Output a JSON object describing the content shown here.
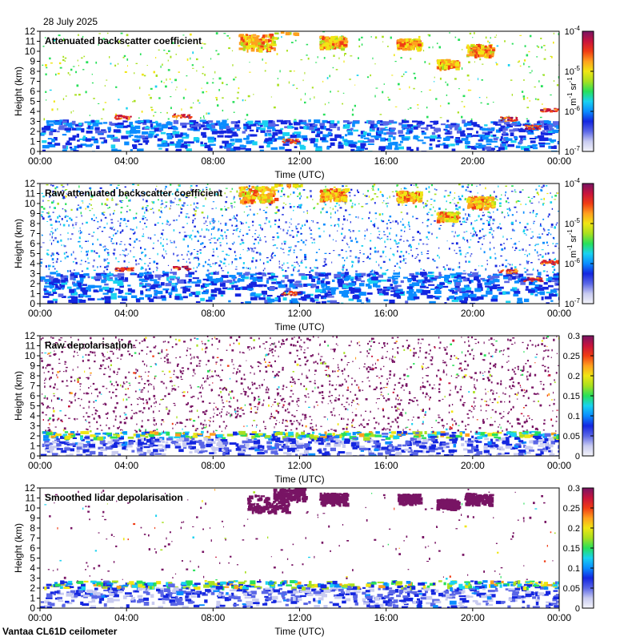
{
  "date": "28 July 2025",
  "instrument": "Vantaa CL61D ceilometer",
  "colors": {
    "plot_background": "#ffffff",
    "axis": "#000000",
    "colormap": [
      "#f4f4fa",
      "#c8cbf0",
      "#5a66e6",
      "#1426e0",
      "#0a8cff",
      "#19d2f0",
      "#28e05a",
      "#a8e020",
      "#f0e614",
      "#ffa01e",
      "#f03c14",
      "#c8143c",
      "#781464"
    ]
  },
  "chart_data": [
    {
      "type": "heatmap",
      "title": "Attenuated backscatter coefficient",
      "xlabel": "Time (UTC)",
      "ylabel": "Height (km)",
      "xticks": [
        "00:00",
        "04:00",
        "08:00",
        "12:00",
        "16:00",
        "20:00",
        "00:00"
      ],
      "yticks": [
        "0",
        "1",
        "2",
        "3",
        "4",
        "5",
        "6",
        "7",
        "8",
        "9",
        "10",
        "11",
        "12"
      ],
      "xlim": [
        0,
        24
      ],
      "ylim": [
        0,
        12
      ],
      "colorbar": {
        "scale": "log",
        "range": [
          1e-07,
          0.0001
        ],
        "ticks": [
          {
            "base": "10",
            "exp": "-7"
          },
          {
            "base": "10",
            "exp": "-6"
          },
          {
            "base": "10",
            "exp": "-5"
          },
          {
            "base": "10",
            "exp": "-4"
          }
        ],
        "unit": {
          "m": "m",
          "m_exp": "-1",
          "sr": "sr",
          "sr_exp": "-1"
        }
      },
      "features": {
        "boundary_layer_top_km": 3.2,
        "noise_density": 0.25,
        "cirrus": [
          [
            10.0,
            11.0,
            0.7
          ],
          [
            11.5,
            12.5,
            0.6
          ],
          [
            13.5,
            11.0,
            0.5
          ],
          [
            17.0,
            10.8,
            0.45
          ],
          [
            18.8,
            8.8,
            0.4
          ],
          [
            20.3,
            10.2,
            0.5
          ]
        ],
        "low_cloud": [
          [
            3.8,
            3.5
          ],
          [
            6.5,
            3.6
          ],
          [
            11.5,
            1.1
          ],
          [
            21.6,
            3.3
          ],
          [
            22.7,
            2.5
          ],
          [
            23.5,
            4.2
          ]
        ]
      }
    },
    {
      "type": "heatmap",
      "title": "Raw attenuated backscatter coefficient",
      "xlabel": "Time (UTC)",
      "ylabel": "Height (km)",
      "xticks": [
        "00:00",
        "04:00",
        "08:00",
        "12:00",
        "16:00",
        "20:00",
        "00:00"
      ],
      "yticks": [
        "0",
        "1",
        "2",
        "3",
        "4",
        "5",
        "6",
        "7",
        "8",
        "9",
        "10",
        "11",
        "12"
      ],
      "xlim": [
        0,
        24
      ],
      "ylim": [
        0,
        12
      ],
      "colorbar": {
        "scale": "log",
        "range": [
          1e-07,
          0.0001
        ],
        "ticks": [
          {
            "base": "10",
            "exp": "-7"
          },
          {
            "base": "10",
            "exp": "-6"
          },
          {
            "base": "10",
            "exp": "-5"
          },
          {
            "base": "10",
            "exp": "-4"
          }
        ],
        "unit": {
          "m": "m",
          "m_exp": "-1",
          "sr": "sr",
          "sr_exp": "-1"
        }
      },
      "features": {
        "boundary_layer_top_km": 3.2,
        "noise_density": 1.0,
        "cirrus": [
          [
            10.0,
            11.0,
            0.7
          ],
          [
            11.5,
            12.5,
            0.6
          ],
          [
            13.5,
            11.0,
            0.5
          ],
          [
            17.0,
            10.8,
            0.45
          ],
          [
            18.8,
            8.8,
            0.4
          ],
          [
            20.3,
            10.2,
            0.5
          ]
        ],
        "low_cloud": [
          [
            3.8,
            3.5
          ],
          [
            6.5,
            3.6
          ],
          [
            11.5,
            1.1
          ],
          [
            21.6,
            3.3
          ],
          [
            22.7,
            2.5
          ],
          [
            23.5,
            4.2
          ]
        ]
      }
    },
    {
      "type": "heatmap",
      "title": "Raw depolarisation",
      "xlabel": "Time (UTC)",
      "ylabel": "Height (km)",
      "xticks": [
        "00:00",
        "04:00",
        "08:00",
        "12:00",
        "16:00",
        "20:00",
        "00:00"
      ],
      "yticks": [
        "0",
        "1",
        "2",
        "3",
        "4",
        "5",
        "6",
        "7",
        "8",
        "9",
        "10",
        "11",
        "12"
      ],
      "xlim": [
        0,
        24
      ],
      "ylim": [
        0,
        12
      ],
      "colorbar": {
        "scale": "linear",
        "range": [
          0,
          0.3
        ],
        "ticks": [
          "0",
          "0.05",
          "0.1",
          "0.15",
          "0.2",
          "0.25",
          "0.3"
        ]
      },
      "features": {
        "boundary_layer_top_km": 2.5,
        "noise_density": 1.0,
        "cirrus": [],
        "low_cloud": []
      }
    },
    {
      "type": "heatmap",
      "title": "Smoothed lidar depolarisation",
      "xlabel": "Time (UTC)",
      "ylabel": "Height (km)",
      "xticks": [
        "00:00",
        "04:00",
        "08:00",
        "12:00",
        "16:00",
        "20:00",
        "00:00"
      ],
      "yticks": [
        "0",
        "1",
        "2",
        "3",
        "4",
        "5",
        "6",
        "7",
        "8",
        "9",
        "10",
        "11",
        "12"
      ],
      "xlim": [
        0,
        24
      ],
      "ylim": [
        0,
        12
      ],
      "colorbar": {
        "scale": "linear",
        "range": [
          0,
          0.3
        ],
        "ticks": [
          "0",
          "0.05",
          "0.1",
          "0.15",
          "0.2",
          "0.25",
          "0.3"
        ]
      },
      "features": {
        "boundary_layer_top_km": 2.8,
        "noise_density": 0.12,
        "cirrus": [
          [
            10.5,
            10.5,
            0.8
          ],
          [
            11.5,
            11.5,
            0.6
          ],
          [
            13.5,
            11.0,
            0.5
          ],
          [
            17.0,
            11.0,
            0.4
          ],
          [
            18.8,
            10.5,
            0.4
          ],
          [
            20.2,
            11.0,
            0.5
          ]
        ],
        "low_cloud": []
      }
    }
  ]
}
